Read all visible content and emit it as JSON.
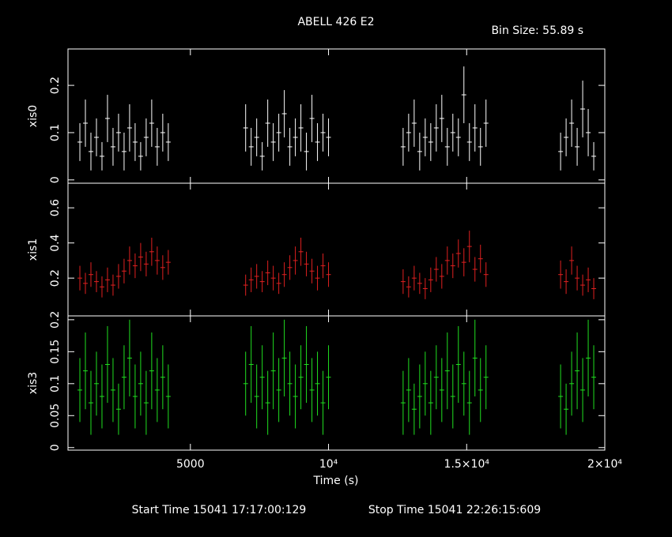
{
  "chart_data": [
    {
      "type": "errorbar",
      "title": "ABELL 426 E2",
      "annotation": "Bin Size: 55.89 s",
      "ylabel": "xis0",
      "color": "#ffffff",
      "x": [
        1000,
        1200,
        1400,
        1600,
        1800,
        2000,
        2200,
        2400,
        2600,
        2800,
        3000,
        3200,
        3400,
        3600,
        3800,
        4000,
        4200,
        7000,
        7200,
        7400,
        7600,
        7800,
        8000,
        8200,
        8400,
        8600,
        8800,
        9000,
        9200,
        9400,
        9600,
        9800,
        10000,
        12700,
        12900,
        13100,
        13300,
        13500,
        13700,
        13900,
        14100,
        14300,
        14500,
        14700,
        14900,
        15100,
        15300,
        15500,
        15700,
        18400,
        18600,
        18800,
        19000,
        19200,
        19400,
        19600
      ],
      "values": [
        0.08,
        0.12,
        0.06,
        0.09,
        0.05,
        0.13,
        0.07,
        0.1,
        0.06,
        0.11,
        0.08,
        0.05,
        0.09,
        0.12,
        0.07,
        0.1,
        0.08,
        0.11,
        0.07,
        0.09,
        0.05,
        0.12,
        0.08,
        0.1,
        0.14,
        0.07,
        0.09,
        0.11,
        0.06,
        0.13,
        0.08,
        0.1,
        0.09,
        0.07,
        0.1,
        0.12,
        0.06,
        0.09,
        0.08,
        0.11,
        0.13,
        0.07,
        0.1,
        0.09,
        0.18,
        0.08,
        0.11,
        0.07,
        0.12,
        0.06,
        0.09,
        0.12,
        0.07,
        0.15,
        0.1,
        0.05
      ],
      "errors": [
        0.04,
        0.05,
        0.04,
        0.04,
        0.03,
        0.05,
        0.04,
        0.04,
        0.04,
        0.05,
        0.04,
        0.03,
        0.04,
        0.05,
        0.04,
        0.04,
        0.04,
        0.05,
        0.04,
        0.04,
        0.03,
        0.05,
        0.04,
        0.04,
        0.05,
        0.04,
        0.04,
        0.05,
        0.04,
        0.05,
        0.04,
        0.04,
        0.04,
        0.04,
        0.04,
        0.05,
        0.04,
        0.04,
        0.04,
        0.05,
        0.05,
        0.04,
        0.04,
        0.04,
        0.06,
        0.04,
        0.05,
        0.04,
        0.05,
        0.04,
        0.04,
        0.05,
        0.04,
        0.06,
        0.05,
        0.03
      ],
      "xlim": [
        570,
        20000
      ],
      "xticks": [
        5000,
        10000,
        15000,
        20000
      ],
      "ylim": [
        -0.007,
        0.277
      ],
      "yticks": [
        0,
        0.1,
        0.2
      ]
    },
    {
      "type": "errorbar",
      "ylabel": "xis1",
      "color": "#e02020",
      "x": [
        1000,
        1200,
        1400,
        1600,
        1800,
        2000,
        2200,
        2400,
        2600,
        2800,
        3000,
        3200,
        3400,
        3600,
        3800,
        4000,
        4200,
        7000,
        7200,
        7400,
        7600,
        7800,
        8000,
        8200,
        8400,
        8600,
        8800,
        9000,
        9200,
        9400,
        9600,
        9800,
        10000,
        12700,
        12900,
        13100,
        13300,
        13500,
        13700,
        13900,
        14100,
        14300,
        14500,
        14700,
        14900,
        15100,
        15300,
        15500,
        15700,
        18400,
        18600,
        18800,
        19000,
        19200,
        19400,
        19600
      ],
      "values": [
        0.2,
        0.17,
        0.22,
        0.18,
        0.15,
        0.19,
        0.16,
        0.21,
        0.24,
        0.3,
        0.27,
        0.32,
        0.28,
        0.35,
        0.3,
        0.26,
        0.29,
        0.16,
        0.19,
        0.21,
        0.18,
        0.23,
        0.2,
        0.17,
        0.22,
        0.26,
        0.3,
        0.35,
        0.28,
        0.24,
        0.2,
        0.27,
        0.22,
        0.18,
        0.15,
        0.2,
        0.17,
        0.14,
        0.19,
        0.25,
        0.21,
        0.3,
        0.27,
        0.34,
        0.29,
        0.38,
        0.25,
        0.31,
        0.22,
        0.22,
        0.18,
        0.3,
        0.2,
        0.16,
        0.19,
        0.14
      ],
      "errors": [
        0.07,
        0.06,
        0.07,
        0.06,
        0.06,
        0.07,
        0.06,
        0.07,
        0.07,
        0.08,
        0.07,
        0.08,
        0.07,
        0.08,
        0.08,
        0.07,
        0.07,
        0.06,
        0.07,
        0.07,
        0.06,
        0.07,
        0.07,
        0.06,
        0.07,
        0.07,
        0.08,
        0.08,
        0.07,
        0.07,
        0.07,
        0.07,
        0.07,
        0.07,
        0.06,
        0.07,
        0.06,
        0.06,
        0.07,
        0.07,
        0.07,
        0.08,
        0.07,
        0.08,
        0.08,
        0.09,
        0.07,
        0.08,
        0.07,
        0.08,
        0.07,
        0.08,
        0.07,
        0.06,
        0.07,
        0.06
      ],
      "xlim": [
        570,
        20000
      ],
      "xticks": [
        5000,
        10000,
        15000,
        20000
      ],
      "ylim": [
        -0.015,
        0.74
      ],
      "yticks": [
        0.2,
        0.4,
        0.6
      ]
    },
    {
      "type": "errorbar",
      "ylabel": "xis3",
      "color": "#20e020",
      "xlabel": "Time (s)",
      "footer": [
        "Start Time 15041 17:17:00:129",
        "Stop Time 15041 22:26:15:609"
      ],
      "x": [
        1000,
        1200,
        1400,
        1600,
        1800,
        2000,
        2200,
        2400,
        2600,
        2800,
        3000,
        3200,
        3400,
        3600,
        3800,
        4000,
        4200,
        7000,
        7200,
        7400,
        7600,
        7800,
        8000,
        8200,
        8400,
        8600,
        8800,
        9000,
        9200,
        9400,
        9600,
        9800,
        10000,
        12700,
        12900,
        13100,
        13300,
        13500,
        13700,
        13900,
        14100,
        14300,
        14500,
        14700,
        14900,
        15100,
        15300,
        15500,
        15700,
        18400,
        18600,
        18800,
        19000,
        19200,
        19400,
        19600
      ],
      "values": [
        0.09,
        0.12,
        0.07,
        0.1,
        0.08,
        0.13,
        0.09,
        0.06,
        0.11,
        0.14,
        0.08,
        0.1,
        0.07,
        0.12,
        0.09,
        0.11,
        0.08,
        0.1,
        0.13,
        0.08,
        0.11,
        0.07,
        0.12,
        0.09,
        0.14,
        0.1,
        0.08,
        0.11,
        0.13,
        0.09,
        0.1,
        0.07,
        0.11,
        0.07,
        0.09,
        0.06,
        0.08,
        0.1,
        0.07,
        0.11,
        0.09,
        0.12,
        0.08,
        0.13,
        0.1,
        0.07,
        0.14,
        0.09,
        0.11,
        0.08,
        0.06,
        0.1,
        0.12,
        0.09,
        0.14,
        0.11
      ],
      "errors": [
        0.05,
        0.06,
        0.05,
        0.05,
        0.05,
        0.06,
        0.05,
        0.04,
        0.05,
        0.06,
        0.05,
        0.05,
        0.05,
        0.06,
        0.05,
        0.05,
        0.05,
        0.05,
        0.06,
        0.05,
        0.05,
        0.05,
        0.06,
        0.05,
        0.06,
        0.05,
        0.05,
        0.05,
        0.06,
        0.05,
        0.05,
        0.05,
        0.05,
        0.05,
        0.05,
        0.04,
        0.05,
        0.05,
        0.05,
        0.05,
        0.05,
        0.06,
        0.05,
        0.06,
        0.05,
        0.05,
        0.06,
        0.05,
        0.05,
        0.05,
        0.04,
        0.05,
        0.06,
        0.05,
        0.06,
        0.05
      ],
      "xlim": [
        570,
        20000
      ],
      "xticks": [
        5000,
        {
          "value": 10000,
          "label": "10⁴"
        },
        {
          "value": 15000,
          "label": "1.5×10⁴"
        },
        {
          "value": 20000,
          "label": "2×10⁴"
        }
      ],
      "ylim": [
        -0.004,
        0.206
      ],
      "yticks": [
        0,
        0.05,
        0.1,
        0.15,
        0.2
      ]
    }
  ]
}
